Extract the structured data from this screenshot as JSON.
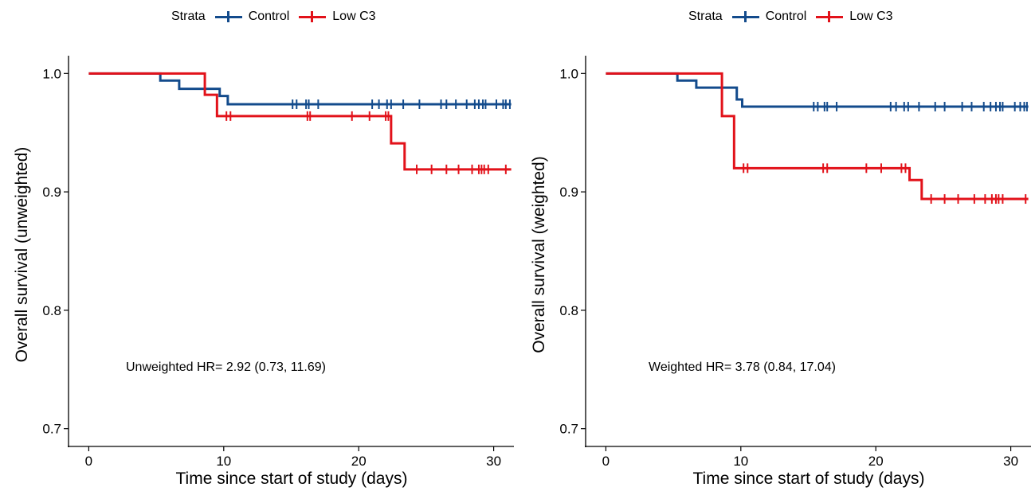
{
  "legend": {
    "title": "Strata",
    "items": [
      {
        "label": "Control",
        "color": "#134B8C"
      },
      {
        "label": "Low C3",
        "color": "#E2121A"
      }
    ]
  },
  "chart_data": [
    {
      "type": "line",
      "subtype": "kaplan-meier",
      "xlabel": "Time since start of study (days)",
      "ylabel": "Overall survival (unweighted)",
      "annotation": "Unweighted HR= 2.92 (0.73, 11.69)",
      "xlim": [
        -1.5,
        31.5
      ],
      "ylim": [
        0.685,
        1.015
      ],
      "xticks": [
        0,
        10,
        20,
        30
      ],
      "yticks": [
        0.7,
        0.8,
        0.9,
        1.0
      ],
      "ytick_labels": [
        "0.7",
        "0.8",
        "0.9",
        "1.0"
      ],
      "series": [
        {
          "name": "Control",
          "color": "#134B8C",
          "steps": [
            [
              0,
              1.0
            ],
            [
              5.3,
              0.994
            ],
            [
              6.7,
              0.987
            ],
            [
              9.7,
              0.981
            ],
            [
              10.3,
              0.974
            ],
            [
              31.3,
              0.974
            ]
          ],
          "censored": [
            [
              15.1,
              0.974
            ],
            [
              15.4,
              0.974
            ],
            [
              16.1,
              0.974
            ],
            [
              16.3,
              0.974
            ],
            [
              17.0,
              0.974
            ],
            [
              21.0,
              0.974
            ],
            [
              21.5,
              0.974
            ],
            [
              22.1,
              0.974
            ],
            [
              22.4,
              0.974
            ],
            [
              23.3,
              0.974
            ],
            [
              24.5,
              0.974
            ],
            [
              26.1,
              0.974
            ],
            [
              26.5,
              0.974
            ],
            [
              27.2,
              0.974
            ],
            [
              28.0,
              0.974
            ],
            [
              28.6,
              0.974
            ],
            [
              28.9,
              0.974
            ],
            [
              29.2,
              0.974
            ],
            [
              29.4,
              0.974
            ],
            [
              30.2,
              0.974
            ],
            [
              30.7,
              0.974
            ],
            [
              30.9,
              0.974
            ],
            [
              31.2,
              0.974
            ]
          ]
        },
        {
          "name": "Low C3",
          "color": "#E2121A",
          "steps": [
            [
              0,
              1.0
            ],
            [
              8.6,
              0.982
            ],
            [
              9.5,
              0.964
            ],
            [
              22.4,
              0.941
            ],
            [
              23.4,
              0.919
            ],
            [
              31.3,
              0.919
            ]
          ],
          "censored": [
            [
              10.2,
              0.964
            ],
            [
              10.5,
              0.964
            ],
            [
              16.2,
              0.964
            ],
            [
              16.4,
              0.964
            ],
            [
              19.5,
              0.964
            ],
            [
              20.8,
              0.964
            ],
            [
              22.0,
              0.964
            ],
            [
              22.2,
              0.964
            ],
            [
              24.3,
              0.919
            ],
            [
              25.4,
              0.919
            ],
            [
              26.5,
              0.919
            ],
            [
              27.4,
              0.919
            ],
            [
              28.4,
              0.919
            ],
            [
              28.9,
              0.919
            ],
            [
              29.1,
              0.919
            ],
            [
              29.3,
              0.919
            ],
            [
              29.6,
              0.919
            ],
            [
              30.9,
              0.919
            ]
          ]
        }
      ]
    },
    {
      "type": "line",
      "subtype": "kaplan-meier",
      "xlabel": "Time since start of study (days)",
      "ylabel": "Overall survival (weighted)",
      "annotation": "Weighted HR= 3.78 (0.84, 17.04)",
      "xlim": [
        -1.5,
        31.5
      ],
      "ylim": [
        0.685,
        1.015
      ],
      "xticks": [
        0,
        10,
        20,
        30
      ],
      "yticks": [
        0.7,
        0.8,
        0.9,
        1.0
      ],
      "ytick_labels": [
        "0.7",
        "0.8",
        "0.9",
        "1.0"
      ],
      "series": [
        {
          "name": "Control",
          "color": "#134B8C",
          "steps": [
            [
              0,
              1.0
            ],
            [
              5.3,
              0.994
            ],
            [
              6.7,
              0.988
            ],
            [
              9.7,
              0.978
            ],
            [
              10.1,
              0.972
            ],
            [
              31.3,
              0.972
            ]
          ],
          "censored": [
            [
              15.4,
              0.972
            ],
            [
              15.7,
              0.972
            ],
            [
              16.2,
              0.972
            ],
            [
              16.4,
              0.972
            ],
            [
              17.1,
              0.972
            ],
            [
              21.1,
              0.972
            ],
            [
              21.5,
              0.972
            ],
            [
              22.1,
              0.972
            ],
            [
              22.4,
              0.972
            ],
            [
              23.2,
              0.972
            ],
            [
              24.4,
              0.972
            ],
            [
              25.1,
              0.972
            ],
            [
              26.4,
              0.972
            ],
            [
              27.1,
              0.972
            ],
            [
              28.0,
              0.972
            ],
            [
              28.5,
              0.972
            ],
            [
              28.9,
              0.972
            ],
            [
              29.2,
              0.972
            ],
            [
              29.4,
              0.972
            ],
            [
              30.3,
              0.972
            ],
            [
              30.7,
              0.972
            ],
            [
              31.0,
              0.972
            ],
            [
              31.2,
              0.972
            ]
          ]
        },
        {
          "name": "Low C3",
          "color": "#E2121A",
          "steps": [
            [
              0,
              1.0
            ],
            [
              8.6,
              0.964
            ],
            [
              9.5,
              0.92
            ],
            [
              22.5,
              0.91
            ],
            [
              23.4,
              0.894
            ],
            [
              31.3,
              0.894
            ]
          ],
          "censored": [
            [
              10.2,
              0.92
            ],
            [
              10.5,
              0.92
            ],
            [
              16.1,
              0.92
            ],
            [
              16.4,
              0.92
            ],
            [
              19.3,
              0.92
            ],
            [
              20.4,
              0.92
            ],
            [
              21.9,
              0.92
            ],
            [
              22.2,
              0.92
            ],
            [
              24.1,
              0.894
            ],
            [
              25.1,
              0.894
            ],
            [
              26.1,
              0.894
            ],
            [
              27.3,
              0.894
            ],
            [
              28.1,
              0.894
            ],
            [
              28.6,
              0.894
            ],
            [
              28.9,
              0.894
            ],
            [
              29.1,
              0.894
            ],
            [
              29.4,
              0.894
            ],
            [
              31.1,
              0.894
            ]
          ]
        }
      ]
    }
  ]
}
